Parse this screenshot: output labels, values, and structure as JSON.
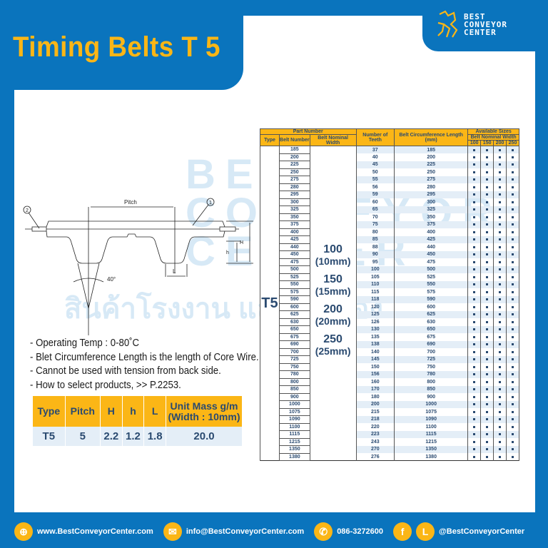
{
  "title": "Timing Belts T 5",
  "logo": {
    "line1": "BEST",
    "line2": "CONVEYOR",
    "line3": "CENTER"
  },
  "watermark": {
    "line1": "BEST",
    "line2": "CONVEYOR",
    "line3": "CENTER",
    "thai": "สินค้าโรงงาน และผลิตเอง"
  },
  "diagram": {
    "pitch": "Pitch",
    "callout1": "1",
    "callout2": "2",
    "H": "H",
    "h": "h",
    "L": "L",
    "angle": "40°"
  },
  "notes": [
    "- Operating Temp : 0-80˚C",
    "- Blet Circumference Length is the length of Core Wire.",
    "- Cannot be used with tension from back side.",
    "- How to select products, >> P.2253."
  ],
  "spec": {
    "headers": [
      "Type",
      "Pitch",
      "H",
      "h",
      "L",
      "Unit Mass g/m (Width : 10mm)"
    ],
    "row": [
      "T5",
      "5",
      "2.2",
      "1.2",
      "1.8",
      "20.0"
    ]
  },
  "belt_table": {
    "h_part": "Part Number",
    "h_type": "Type",
    "h_belt": "Belt Number",
    "h_width": "Belt Nominal Width",
    "h_teeth": "Number of Teeth",
    "h_circ": "Belt Circumference Length (mm)",
    "h_avail": "Available Sizes",
    "h_bnw": "Belt Nominal Width",
    "sizes": [
      "100",
      "150",
      "200",
      "250"
    ],
    "type": "T5",
    "widths": [
      {
        "w": "100",
        "mm": "(10mm)"
      },
      {
        "w": "150",
        "mm": "(15mm)"
      },
      {
        "w": "200",
        "mm": "(20mm)"
      },
      {
        "w": "250",
        "mm": "(25mm)"
      }
    ],
    "rows": [
      [
        "185",
        "37",
        "185"
      ],
      [
        "200",
        "40",
        "200"
      ],
      [
        "225",
        "45",
        "225"
      ],
      [
        "250",
        "50",
        "250"
      ],
      [
        "275",
        "55",
        "275"
      ],
      [
        "280",
        "56",
        "280"
      ],
      [
        "295",
        "59",
        "295"
      ],
      [
        "300",
        "60",
        "300"
      ],
      [
        "325",
        "65",
        "325"
      ],
      [
        "350",
        "70",
        "350"
      ],
      [
        "375",
        "75",
        "375"
      ],
      [
        "400",
        "80",
        "400"
      ],
      [
        "425",
        "85",
        "425"
      ],
      [
        "440",
        "88",
        "440"
      ],
      [
        "450",
        "90",
        "450"
      ],
      [
        "475",
        "95",
        "475"
      ],
      [
        "500",
        "100",
        "500"
      ],
      [
        "525",
        "105",
        "525"
      ],
      [
        "550",
        "110",
        "550"
      ],
      [
        "575",
        "115",
        "575"
      ],
      [
        "590",
        "118",
        "590"
      ],
      [
        "600",
        "120",
        "600"
      ],
      [
        "625",
        "125",
        "625"
      ],
      [
        "630",
        "126",
        "630"
      ],
      [
        "650",
        "130",
        "650"
      ],
      [
        "675",
        "135",
        "675"
      ],
      [
        "690",
        "138",
        "690"
      ],
      [
        "700",
        "140",
        "700"
      ],
      [
        "725",
        "145",
        "725"
      ],
      [
        "750",
        "150",
        "750"
      ],
      [
        "780",
        "156",
        "780"
      ],
      [
        "800",
        "160",
        "800"
      ],
      [
        "850",
        "170",
        "850"
      ],
      [
        "900",
        "180",
        "900"
      ],
      [
        "1000",
        "200",
        "1000"
      ],
      [
        "1075",
        "215",
        "1075"
      ],
      [
        "1090",
        "218",
        "1090"
      ],
      [
        "1100",
        "220",
        "1100"
      ],
      [
        "1115",
        "223",
        "1115"
      ],
      [
        "1215",
        "243",
        "1215"
      ],
      [
        "1350",
        "270",
        "1350"
      ],
      [
        "1380",
        "276",
        "1380"
      ]
    ],
    "availability": "all"
  },
  "footer": {
    "web": "www.BestConveyorCenter.com",
    "email": "info@BestConveyorCenter.com",
    "phone": "086-3272600",
    "social": "@BestConveyorCenter"
  },
  "colors": {
    "blue": "#0a74bd",
    "yellow": "#fbb616",
    "navy": "#2a4a70"
  }
}
